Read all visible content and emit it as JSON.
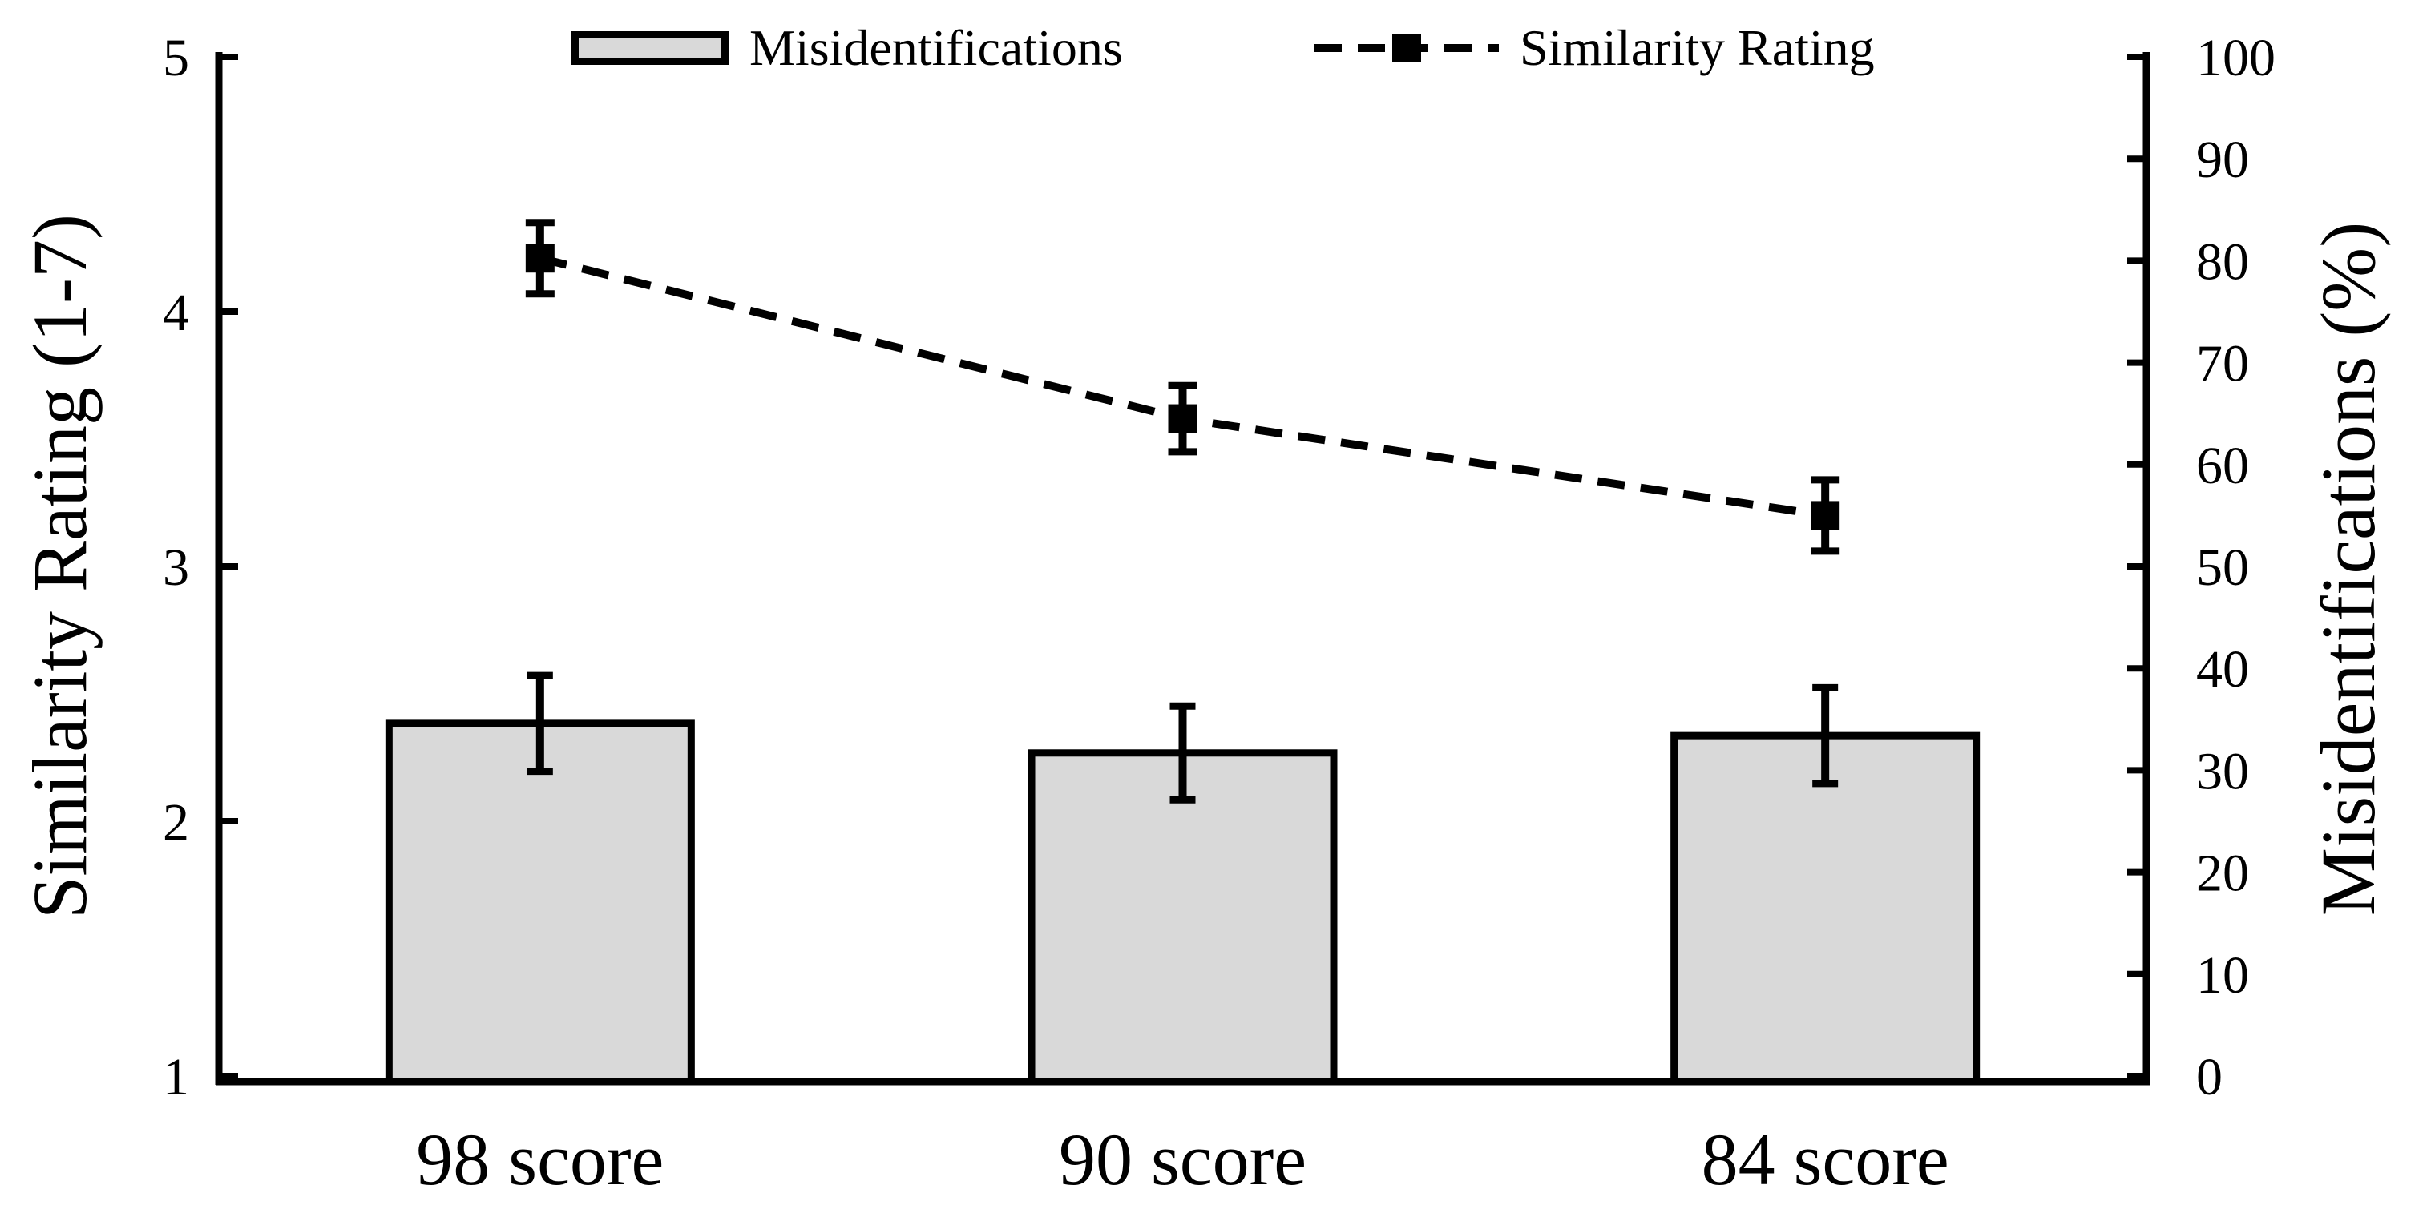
{
  "legend": {
    "items": [
      {
        "label": "Misidentifications",
        "swatch": "gray-bar"
      },
      {
        "label": "Similarity Rating",
        "swatch": "dashed-line-square-marker"
      }
    ]
  },
  "axes": {
    "left": {
      "title": "Similarity Rating (1-7)",
      "ticks": [
        "5",
        "4",
        "3",
        "2",
        "1"
      ]
    },
    "right": {
      "title": "Misidentifications (%)",
      "ticks": [
        "100",
        "90",
        "80",
        "70",
        "60",
        "50",
        "40",
        "30",
        "20",
        "10",
        "0"
      ]
    },
    "x": {
      "categories": [
        "98 score",
        "90 score",
        "84 score"
      ]
    }
  },
  "chart_data": {
    "type": "combo",
    "categories": [
      "98 score",
      "90 score",
      "84 score"
    ],
    "series": [
      {
        "name": "Misidentifications",
        "type": "bar",
        "axis": "right",
        "values_percent": [
          34.6,
          31.7,
          33.4
        ],
        "error_bars_percent": [
          4.7,
          4.6,
          4.7
        ],
        "fill": "#d9d9d9",
        "stroke": "#000000"
      },
      {
        "name": "Similarity Rating",
        "type": "line",
        "axis": "left",
        "values": [
          4.21,
          3.58,
          3.2
        ],
        "error_bars": [
          0.14,
          0.13,
          0.14
        ],
        "line_style": "dashed",
        "marker": "square",
        "color": "#000000"
      }
    ],
    "left_axis": {
      "label": "Similarity Rating (1-7)",
      "range": [
        1,
        5
      ],
      "tick_step": 1
    },
    "right_axis": {
      "label": "Misidentifications (%)",
      "range": [
        0,
        100
      ],
      "tick_step": 10
    },
    "grid": false,
    "legend_position": "top-center"
  },
  "colors": {
    "bar_fill": "#d9d9d9",
    "stroke": "#000000",
    "background": "#ffffff"
  }
}
